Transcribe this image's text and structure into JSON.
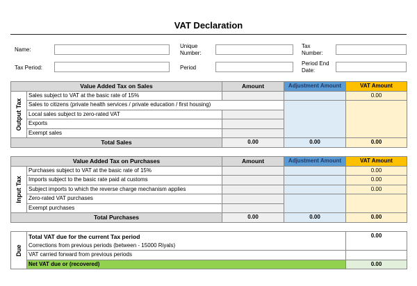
{
  "title": "VAT Declaration",
  "form": {
    "name": "Name:",
    "unique_number": "Unique Number:",
    "tax_number": "Tax Number:",
    "tax_period": "Tax Period:",
    "period": "Period",
    "period_end_date": "Period End Date:"
  },
  "columns": {
    "amount": "Amount",
    "adjustment": "Adjustment Amount",
    "vat": "VAT Amount"
  },
  "sales": {
    "header": "Value Added Tax on Sales",
    "side": "Output Tax",
    "rows": [
      "Sales subject to VAT at the basic rate of 15%",
      "Sales to citizens (private health services / private education / first housing)",
      "Local sales subject to zero-rated VAT",
      "Exports",
      "Exempt sales"
    ],
    "vat_row1": "0.00",
    "total_label": "Total Sales",
    "total_amount": "0.00",
    "total_adjustment": "0.00",
    "total_vat": "0.00"
  },
  "purchases": {
    "header": "Value Added Tax on Purchases",
    "side": "Input Tax",
    "rows": [
      "Purchases subject to VAT at the basic rate of 15%",
      "Imports subject to the basic rate paid at customs",
      "Subject imports to which the reverse charge mechanism applies",
      "Zero-rated VAT purchases",
      "Exempt purchases"
    ],
    "vat": [
      "0.00",
      "0.00",
      "0.00"
    ],
    "total_label": "Total Purchases",
    "total_amount": "0.00",
    "total_adjustment": "0.00",
    "total_vat": "0.00"
  },
  "due": {
    "side": "Due",
    "rows": [
      "Total VAT due for the current Tax period",
      "Corrections from previous periods (between - 15000 Riyals)",
      "VAT carried forward from previous periods",
      "Net VAT due or (recovered)"
    ],
    "total_vat_due": "0.00",
    "net_vat": "0.00"
  },
  "colors": {
    "adjustment_header": "#5b9bd5",
    "vat_header": "#ffc000",
    "net_row": "#92d050"
  }
}
